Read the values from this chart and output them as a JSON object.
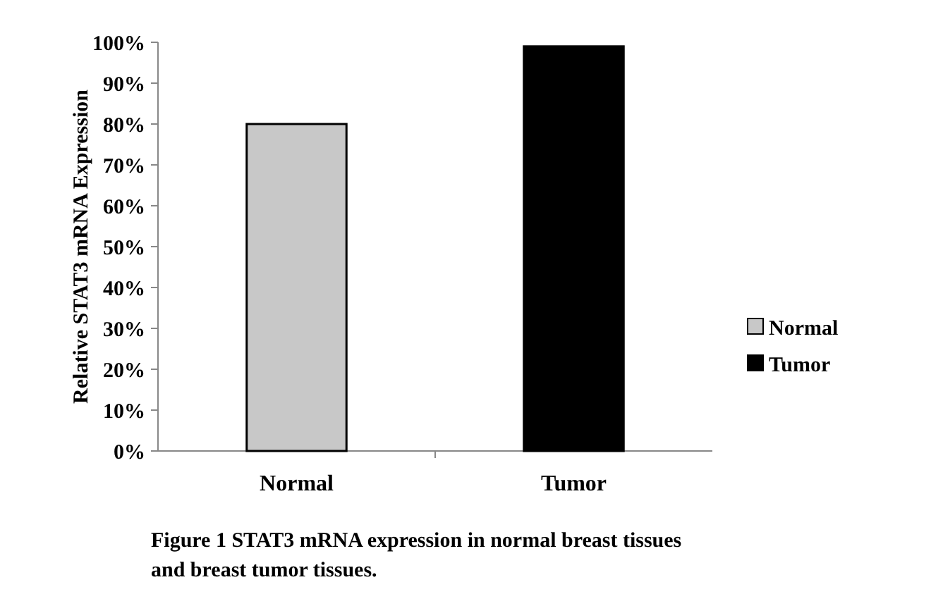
{
  "chart_data": {
    "type": "bar",
    "ylabel": "Relative STAT3 mRNA Expression",
    "categories": [
      "Normal",
      "Tumor"
    ],
    "stacked": true,
    "series": [
      {
        "name": "Normal",
        "color": "#c8c8c8",
        "values": [
          80,
          null
        ]
      },
      {
        "name": "Tumor",
        "color": "#000000",
        "values": [
          null,
          99
        ]
      }
    ],
    "ylim": [
      0,
      100
    ],
    "yticks": [
      {
        "value": 0,
        "label": "0%"
      },
      {
        "value": 10,
        "label": "10%"
      },
      {
        "value": 20,
        "label": "20%"
      },
      {
        "value": 30,
        "label": "30%"
      },
      {
        "value": 40,
        "label": "40%"
      },
      {
        "value": 50,
        "label": "50%"
      },
      {
        "value": 60,
        "label": "60%"
      },
      {
        "value": 70,
        "label": "70%"
      },
      {
        "value": 80,
        "label": "80%"
      },
      {
        "value": 90,
        "label": "90%"
      },
      {
        "value": 100,
        "label": "100%"
      }
    ],
    "legend": "right",
    "annotations": [
      "Figure 1 STAT3 mRNA expression in normal breast tissues and breast tumor tissues."
    ]
  }
}
